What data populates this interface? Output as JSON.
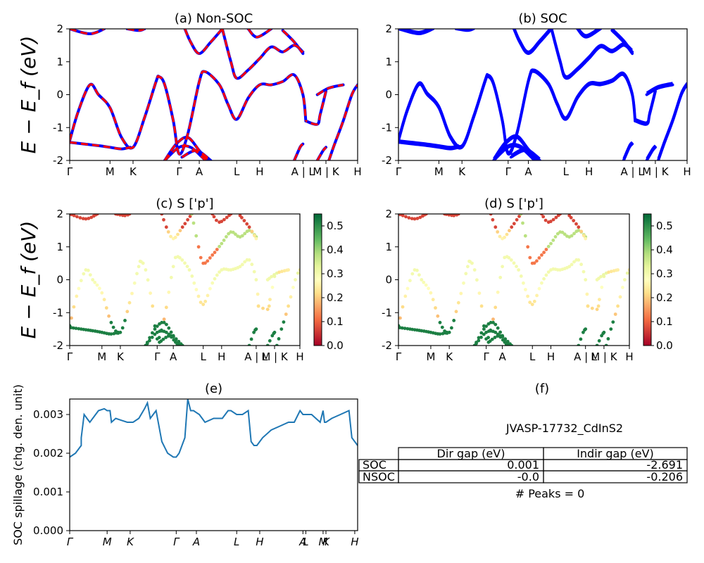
{
  "chart_data": [
    {
      "id": "a",
      "type": "line",
      "title": "(a) Non-SOC",
      "ylabel": "E − E_f (eV)",
      "ylim": [
        -2,
        2
      ],
      "yticks": [
        -2,
        -1,
        0,
        1,
        2
      ],
      "xticks": [
        "Γ",
        "M",
        "K",
        "Γ",
        "A",
        "L",
        "H",
        "A | L",
        "M | K",
        "H"
      ],
      "xtick_positions": [
        0,
        0.14,
        0.22,
        0.38,
        0.45,
        0.58,
        0.66,
        0.81,
        0.89,
        1.0
      ],
      "series": [
        {
          "color": "#0000ff",
          "dashed": false
        },
        {
          "color": "#ff0000",
          "dashed": true
        }
      ],
      "bands": [
        [
          [
            0.0,
            -1.45
          ],
          [
            0.05,
            -1.5
          ],
          [
            0.1,
            -1.55
          ],
          [
            0.14,
            -1.6
          ],
          [
            0.18,
            -1.65
          ],
          [
            0.21,
            -1.6
          ]
        ],
        [
          [
            0.0,
            -1.4
          ],
          [
            0.03,
            -0.5
          ],
          [
            0.07,
            0.3
          ],
          [
            0.1,
            0.0
          ],
          [
            0.14,
            -0.4
          ],
          [
            0.18,
            -1.3
          ],
          [
            0.22,
            -1.6
          ],
          [
            0.26,
            -0.7
          ],
          [
            0.3,
            0.4
          ],
          [
            0.31,
            0.55
          ],
          [
            0.33,
            0.3
          ],
          [
            0.36,
            -0.8
          ],
          [
            0.38,
            -1.8
          ],
          [
            0.41,
            -1.2
          ],
          [
            0.45,
            0.4
          ],
          [
            0.47,
            0.7
          ],
          [
            0.52,
            0.3
          ],
          [
            0.55,
            -0.3
          ],
          [
            0.58,
            -0.75
          ],
          [
            0.62,
            -0.1
          ],
          [
            0.66,
            0.3
          ],
          [
            0.7,
            0.3
          ],
          [
            0.74,
            0.4
          ],
          [
            0.78,
            0.6
          ],
          [
            0.81,
            0.0
          ],
          [
            0.82,
            -0.8
          ]
        ],
        [
          [
            0.0,
            2.0
          ],
          [
            0.07,
            1.85
          ],
          [
            0.12,
            2.0
          ]
        ],
        [
          [
            0.4,
            2.0
          ],
          [
            0.42,
            1.6
          ],
          [
            0.45,
            1.25
          ],
          [
            0.49,
            1.6
          ],
          [
            0.53,
            2.0
          ]
        ],
        [
          [
            0.53,
            2.0
          ],
          [
            0.56,
            1.0
          ],
          [
            0.58,
            0.5
          ],
          [
            0.62,
            0.75
          ],
          [
            0.66,
            1.1
          ],
          [
            0.7,
            1.45
          ],
          [
            0.74,
            1.3
          ],
          [
            0.78,
            1.5
          ],
          [
            0.81,
            1.3
          ]
        ],
        [
          [
            0.2,
            2.0
          ],
          [
            0.24,
            1.95
          ],
          [
            0.26,
            2.0
          ]
        ],
        [
          [
            0.62,
            2.0
          ],
          [
            0.65,
            1.75
          ],
          [
            0.7,
            2.0
          ]
        ],
        [
          [
            0.74,
            1.95
          ],
          [
            0.78,
            1.6
          ],
          [
            0.81,
            1.25
          ]
        ],
        [
          [
            0.33,
            -2.0
          ],
          [
            0.37,
            -1.5
          ],
          [
            0.41,
            -1.3
          ],
          [
            0.45,
            -1.7
          ],
          [
            0.48,
            -2.0
          ]
        ],
        [
          [
            0.33,
            -2.0
          ],
          [
            0.38,
            -1.6
          ],
          [
            0.42,
            -1.6
          ],
          [
            0.46,
            -1.9
          ],
          [
            0.47,
            -2.0
          ]
        ],
        [
          [
            0.39,
            -1.9
          ],
          [
            0.44,
            -1.7
          ],
          [
            0.49,
            -2.0
          ]
        ],
        [
          [
            0.78,
            -2.0
          ],
          [
            0.8,
            -1.6
          ],
          [
            0.81,
            -1.5
          ]
        ],
        [
          [
            0.86,
            -2.0
          ],
          [
            0.88,
            -1.7
          ],
          [
            0.89,
            -1.6
          ]
        ],
        [
          [
            0.9,
            -2.0
          ],
          [
            0.92,
            -1.5
          ],
          [
            0.95,
            -0.8
          ],
          [
            0.98,
            0.0
          ],
          [
            1.0,
            0.3
          ]
        ],
        [
          [
            0.89,
            0.1
          ],
          [
            0.87,
            -0.6
          ],
          [
            0.86,
            -0.9
          ],
          [
            0.82,
            -0.8
          ]
        ],
        [
          [
            0.86,
            0.0
          ],
          [
            0.9,
            0.2
          ],
          [
            0.95,
            0.3
          ]
        ]
      ]
    },
    {
      "id": "b",
      "type": "line",
      "title": "(b) SOC",
      "ylim": [
        -2,
        2
      ],
      "yticks": [
        -2,
        -1,
        0,
        1,
        2
      ],
      "xticks": [
        "Γ",
        "M",
        "K",
        "Γ",
        "A",
        "L",
        "H",
        "A | L",
        "M | K",
        "H"
      ],
      "xtick_positions": [
        0,
        0.14,
        0.22,
        0.38,
        0.45,
        0.58,
        0.66,
        0.81,
        0.89,
        1.0
      ],
      "series": [
        {
          "color": "#0000ff",
          "dashed": false
        }
      ]
    },
    {
      "id": "c",
      "type": "scatter",
      "title": "(c)  S ['p']",
      "ylabel": "E − E_f (eV)",
      "ylim": [
        -2,
        2
      ],
      "yticks": [
        -2,
        -1,
        0,
        1,
        2
      ],
      "xticks": [
        "Γ",
        "M",
        "K",
        "Γ",
        "A",
        "L",
        "H",
        "A | L",
        "M | K",
        "H"
      ],
      "xtick_positions": [
        0,
        0.14,
        0.22,
        0.38,
        0.45,
        0.58,
        0.66,
        0.81,
        0.89,
        1.0
      ],
      "colorbar": {
        "min": 0.0,
        "max": 0.55,
        "ticks": [
          0.0,
          0.1,
          0.2,
          0.3,
          0.4,
          0.5
        ],
        "colormap": "RdYlGn"
      }
    },
    {
      "id": "d",
      "type": "scatter",
      "title": "(d) S ['p']",
      "ylim": [
        -2,
        2
      ],
      "yticks": [
        -2,
        -1,
        0,
        1,
        2
      ],
      "xticks": [
        "Γ",
        "M",
        "K",
        "Γ",
        "A",
        "L",
        "H",
        "A | L",
        "M | K",
        "H"
      ],
      "xtick_positions": [
        0,
        0.14,
        0.22,
        0.38,
        0.45,
        0.58,
        0.66,
        0.81,
        0.89,
        1.0
      ],
      "colorbar": {
        "min": 0.0,
        "max": 0.55,
        "ticks": [
          0.0,
          0.1,
          0.2,
          0.3,
          0.4,
          0.5
        ],
        "colormap": "RdYlGn"
      }
    },
    {
      "id": "e",
      "type": "line",
      "title": "(e)",
      "ylabel": "SOC spillage (chg. den. unit)",
      "ylim": [
        0,
        0.0034
      ],
      "yticks": [
        "0.000",
        "0.001",
        "0.002",
        "0.003"
      ],
      "ytick_values": [
        0,
        0.001,
        0.002,
        0.003
      ],
      "xticks": [
        "Γ",
        "M",
        "K",
        "Γ",
        "A",
        "L",
        "H",
        "A",
        "L",
        "M",
        "K",
        "H"
      ],
      "xtick_positions": [
        0,
        0.13,
        0.21,
        0.37,
        0.44,
        0.58,
        0.66,
        0.81,
        0.82,
        0.88,
        0.89,
        0.99
      ],
      "series": [
        {
          "color": "#1f77b4"
        }
      ],
      "x": [
        0,
        0.02,
        0.04,
        0.04,
        0.05,
        0.06,
        0.07,
        0.08,
        0.1,
        0.12,
        0.13,
        0.14,
        0.145,
        0.16,
        0.18,
        0.2,
        0.22,
        0.24,
        0.26,
        0.27,
        0.28,
        0.29,
        0.3,
        0.32,
        0.34,
        0.36,
        0.37,
        0.38,
        0.39,
        0.4,
        0.41,
        0.42,
        0.43,
        0.44,
        0.45,
        0.47,
        0.5,
        0.53,
        0.55,
        0.56,
        0.58,
        0.59,
        0.6,
        0.62,
        0.63,
        0.64,
        0.65,
        0.67,
        0.7,
        0.73,
        0.76,
        0.78,
        0.8,
        0.81,
        0.82,
        0.84,
        0.87,
        0.88,
        0.885,
        0.89,
        0.91,
        0.94,
        0.97,
        0.98,
        1.0
      ],
      "y": [
        0.0019,
        0.002,
        0.0022,
        0.0024,
        0.003,
        0.0029,
        0.0028,
        0.0029,
        0.0031,
        0.00315,
        0.0031,
        0.0031,
        0.0028,
        0.0029,
        0.00285,
        0.0028,
        0.0028,
        0.0029,
        0.00315,
        0.0033,
        0.0029,
        0.003,
        0.0031,
        0.0023,
        0.002,
        0.0019,
        0.0019,
        0.002,
        0.0022,
        0.0024,
        0.0034,
        0.0031,
        0.0031,
        0.00305,
        0.003,
        0.0028,
        0.0029,
        0.0029,
        0.0031,
        0.0031,
        0.003,
        0.003,
        0.003,
        0.0031,
        0.0023,
        0.0022,
        0.0022,
        0.0024,
        0.0026,
        0.0027,
        0.0028,
        0.0028,
        0.0031,
        0.003,
        0.003,
        0.003,
        0.0028,
        0.0031,
        0.0028,
        0.0028,
        0.0029,
        0.003,
        0.0031,
        0.0024,
        0.0022
      ]
    }
  ],
  "panel_f": {
    "title": "(f)",
    "material": "JVASP-17732_CdInS2",
    "table": {
      "headers": [
        "",
        "Dir gap (eV)",
        "Indir gap (eV)"
      ],
      "rows": [
        [
          "SOC",
          "0.001",
          "-2.691"
        ],
        [
          "NSOC",
          "-0.0",
          "-0.206"
        ]
      ]
    },
    "peaks": "# Peaks = 0"
  }
}
